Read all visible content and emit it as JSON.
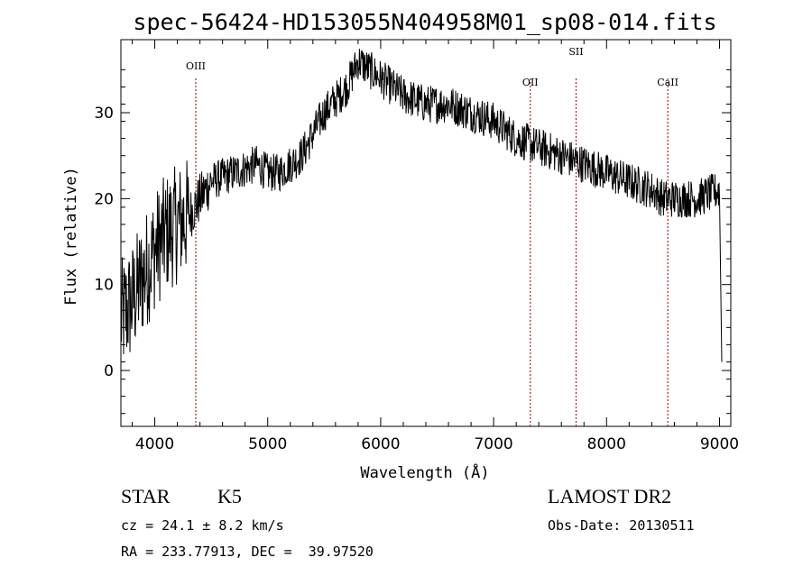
{
  "chart_data": {
    "type": "line",
    "title": "spec-56424-HD153055N404958M01_sp08-014.fits",
    "xlabel": "Wavelength (Å)",
    "ylabel": "Flux (relative)",
    "xlim": [
      3700,
      9100
    ],
    "ylim": [
      -6.5,
      38.5
    ],
    "xticks": [
      4000,
      5000,
      6000,
      7000,
      8000,
      9000
    ],
    "yticks": [
      0,
      10,
      20,
      30
    ],
    "spectrum_anchors": {
      "x": [
        3700,
        3800,
        3900,
        4000,
        4100,
        4200,
        4300,
        4400,
        4500,
        4700,
        4900,
        5000,
        5100,
        5300,
        5500,
        5700,
        5800,
        6000,
        6200,
        6400,
        6600,
        6800,
        7000,
        7200,
        7400,
        7600,
        7800,
        8000,
        8200,
        8400,
        8500,
        8600,
        8800,
        9000,
        9020
      ],
      "y": [
        6,
        8,
        11,
        14,
        16,
        17,
        18,
        20,
        22,
        23,
        24,
        23,
        23,
        25,
        30,
        33,
        36,
        34,
        32,
        31,
        31,
        30,
        29,
        27,
        26,
        25,
        24,
        23,
        22,
        21,
        20,
        20,
        20,
        21,
        1
      ]
    },
    "lines": [
      {
        "label": "OIII",
        "x": 4363
      },
      {
        "label": "OII",
        "x": 7325
      },
      {
        "label": "SII",
        "x": 7730
      },
      {
        "label": "CaII",
        "x": 8542
      }
    ],
    "colors": {
      "spectrum": "#000000",
      "line_markers": "#8b0000"
    }
  },
  "info": {
    "class": "STAR",
    "subclass": "K5",
    "survey": "LAMOST DR2",
    "cz": "cz = 24.1 ± 8.2 km/s",
    "obs_date": "Obs-Date: 20130511",
    "radec": "RA = 233.77913, DEC =  39.97520"
  }
}
